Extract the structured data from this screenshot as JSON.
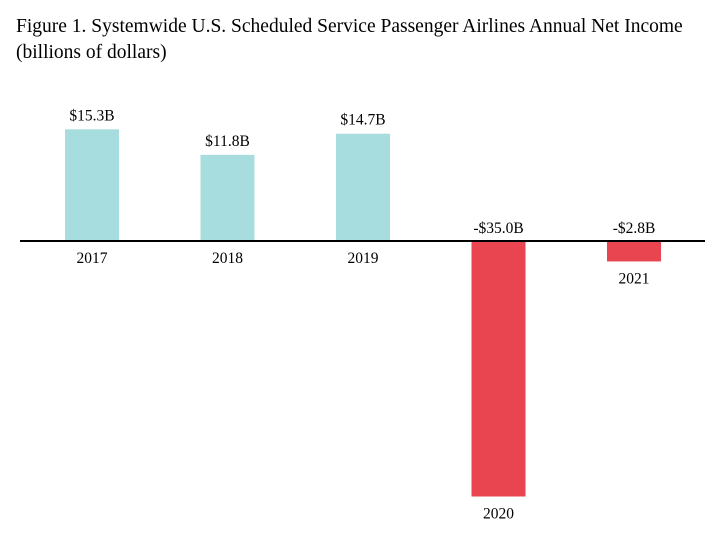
{
  "chart_data": {
    "type": "bar",
    "title": "Figure 1. Systemwide U.S. Scheduled Service Passenger Airlines Annual Net Income",
    "subtitle": "(billions of dollars)",
    "xlabel": "",
    "ylabel": "",
    "categories": [
      "2017",
      "2018",
      "2019",
      "2020",
      "2021"
    ],
    "values": [
      15.3,
      11.8,
      14.7,
      -35.0,
      -2.8
    ],
    "data_labels": [
      "$15.3B",
      "$11.8B",
      "$14.7B",
      "-$35.0B",
      "-$2.8B"
    ],
    "ylim": [
      -35.0,
      15.3
    ],
    "grid": false,
    "legend": "none",
    "colors": {
      "positive": "#a8dde0",
      "negative": "#e84550",
      "axis": "#000000"
    }
  }
}
